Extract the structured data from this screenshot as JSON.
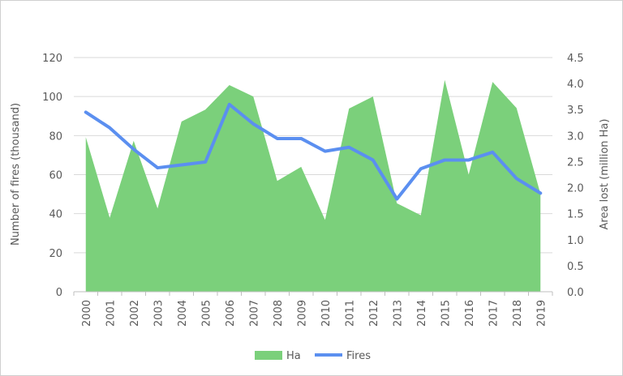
{
  "chart_data": {
    "type": "area",
    "categories": [
      "2000",
      "2001",
      "2002",
      "2003",
      "2004",
      "2005",
      "2006",
      "2007",
      "2008",
      "2009",
      "2010",
      "2011",
      "2012",
      "2013",
      "2014",
      "2015",
      "2016",
      "2017",
      "2018",
      "2019"
    ],
    "series": [
      {
        "name": "Ha",
        "type": "area",
        "axis": "right",
        "color": "#7bd07b",
        "values": [
          2.97,
          1.42,
          2.9,
          1.6,
          3.27,
          3.5,
          3.97,
          3.75,
          2.13,
          2.4,
          1.38,
          3.52,
          3.75,
          1.7,
          1.47,
          4.07,
          2.25,
          4.03,
          3.53,
          1.88
        ]
      },
      {
        "name": "Fires",
        "type": "line",
        "axis": "left",
        "color": "#5b8ff0",
        "values": [
          92,
          84,
          73,
          63.5,
          65,
          66.5,
          96,
          86,
          78.5,
          78.5,
          72,
          74,
          67.5,
          47.5,
          63,
          67.5,
          67.5,
          71.5,
          58,
          50.5
        ]
      }
    ],
    "ylabel": "Number of fires (thousand)",
    "ylabel_right": "Area lost (million Ha)",
    "ylim": [
      0,
      120
    ],
    "ylim_right": [
      0,
      4.5
    ],
    "yticks": [
      "0",
      "20",
      "40",
      "60",
      "80",
      "100",
      "120"
    ],
    "yticks_right": [
      "0.0",
      "0.5",
      "1.0",
      "1.5",
      "2.0",
      "2.5",
      "3.0",
      "3.5",
      "4.0",
      "4.5"
    ],
    "grid": true,
    "legend": "bottom",
    "legend_items": [
      "Ha",
      "Fires"
    ],
    "colors": {
      "grid": "#d9d9d9",
      "text": "#595959",
      "area": "#7bd07b",
      "line": "#5b8ff0"
    }
  }
}
